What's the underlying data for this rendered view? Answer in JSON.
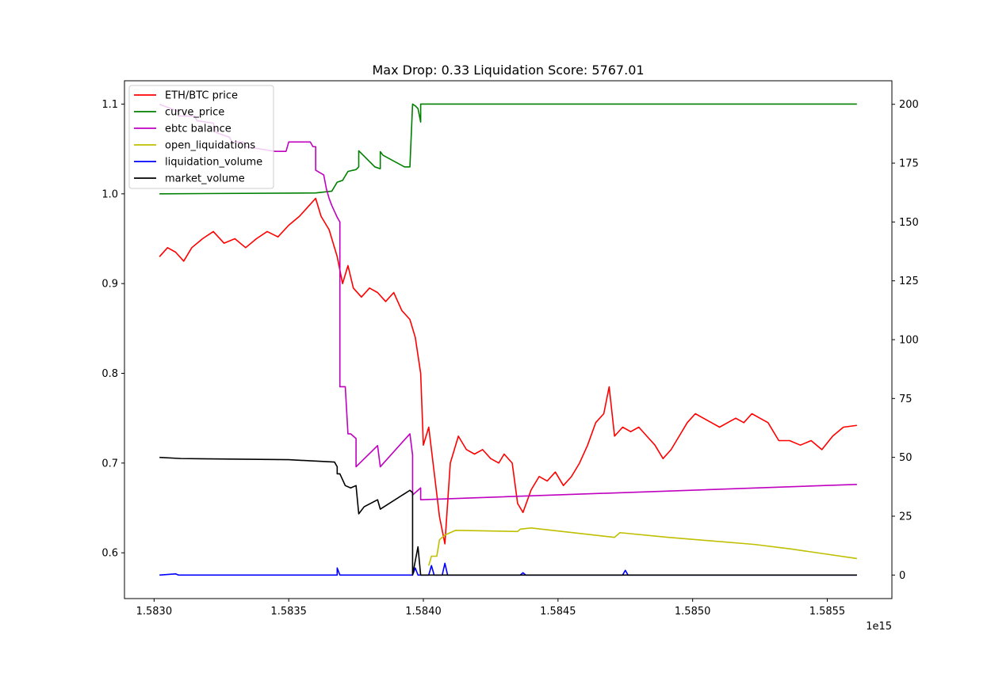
{
  "chart_data": {
    "type": "line",
    "title": "Max Drop: 0.33 Liquidation Score: 5767.01",
    "xlabel": "",
    "ylabel": "",
    "x_offset_label": "1e15",
    "xlim": [
      1.58289,
      1.58574
    ],
    "ylim_left": [
      0.549,
      1.126
    ],
    "ylim_right": [
      -10,
      210
    ],
    "x_ticks": [
      1.583,
      1.5835,
      1.584,
      1.5845,
      1.585,
      1.5855
    ],
    "x_tick_labels": [
      "1.5830",
      "1.5835",
      "1.5840",
      "1.5845",
      "1.5850",
      "1.5855"
    ],
    "y_left_ticks": [
      0.6,
      0.7,
      0.8,
      0.9,
      1.0,
      1.1
    ],
    "y_left_tick_labels": [
      "0.6",
      "0.7",
      "0.8",
      "0.9",
      "1.0",
      "1.1"
    ],
    "y_right_ticks": [
      0,
      25,
      50,
      75,
      100,
      125,
      150,
      175,
      200
    ],
    "y_right_tick_labels": [
      "0",
      "25",
      "50",
      "75",
      "100",
      "125",
      "150",
      "175",
      "200"
    ],
    "grid": false,
    "legend_position": "top-left",
    "series": [
      {
        "name": "ETH/BTC price",
        "color": "#ff0000",
        "axis": "left",
        "points": [
          [
            1.58302,
            0.93
          ],
          [
            1.58305,
            0.94
          ],
          [
            1.58308,
            0.935
          ],
          [
            1.58311,
            0.925
          ],
          [
            1.58314,
            0.94
          ],
          [
            1.58318,
            0.95
          ],
          [
            1.58322,
            0.958
          ],
          [
            1.58326,
            0.945
          ],
          [
            1.5833,
            0.95
          ],
          [
            1.58334,
            0.94
          ],
          [
            1.58338,
            0.95
          ],
          [
            1.58342,
            0.958
          ],
          [
            1.58346,
            0.952
          ],
          [
            1.5835,
            0.965
          ],
          [
            1.58354,
            0.975
          ],
          [
            1.58357,
            0.985
          ],
          [
            1.5836,
            0.995
          ],
          [
            1.58362,
            0.975
          ],
          [
            1.58365,
            0.96
          ],
          [
            1.58368,
            0.93
          ],
          [
            1.5837,
            0.9
          ],
          [
            1.58372,
            0.92
          ],
          [
            1.58374,
            0.895
          ],
          [
            1.58377,
            0.885
          ],
          [
            1.5838,
            0.895
          ],
          [
            1.58383,
            0.89
          ],
          [
            1.58386,
            0.88
          ],
          [
            1.58389,
            0.89
          ],
          [
            1.58392,
            0.87
          ],
          [
            1.58395,
            0.86
          ],
          [
            1.58397,
            0.84
          ],
          [
            1.58399,
            0.8
          ],
          [
            1.584,
            0.72
          ],
          [
            1.58402,
            0.74
          ],
          [
            1.58404,
            0.69
          ],
          [
            1.58406,
            0.64
          ],
          [
            1.58408,
            0.61
          ],
          [
            1.5841,
            0.7
          ],
          [
            1.58413,
            0.73
          ],
          [
            1.58416,
            0.715
          ],
          [
            1.58419,
            0.71
          ],
          [
            1.58422,
            0.715
          ],
          [
            1.58425,
            0.705
          ],
          [
            1.58428,
            0.7
          ],
          [
            1.5843,
            0.71
          ],
          [
            1.58433,
            0.7
          ],
          [
            1.58435,
            0.655
          ],
          [
            1.58437,
            0.645
          ],
          [
            1.5844,
            0.67
          ],
          [
            1.58443,
            0.685
          ],
          [
            1.58446,
            0.68
          ],
          [
            1.58449,
            0.69
          ],
          [
            1.58452,
            0.675
          ],
          [
            1.58455,
            0.685
          ],
          [
            1.58458,
            0.7
          ],
          [
            1.58461,
            0.72
          ],
          [
            1.58464,
            0.745
          ],
          [
            1.58467,
            0.755
          ],
          [
            1.58469,
            0.785
          ],
          [
            1.58471,
            0.73
          ],
          [
            1.58474,
            0.74
          ],
          [
            1.58477,
            0.735
          ],
          [
            1.5848,
            0.74
          ],
          [
            1.58483,
            0.73
          ],
          [
            1.58486,
            0.72
          ],
          [
            1.58489,
            0.705
          ],
          [
            1.58492,
            0.715
          ],
          [
            1.58495,
            0.73
          ],
          [
            1.58498,
            0.745
          ],
          [
            1.58501,
            0.755
          ],
          [
            1.58504,
            0.75
          ],
          [
            1.58507,
            0.745
          ],
          [
            1.5851,
            0.74
          ],
          [
            1.58513,
            0.745
          ],
          [
            1.58516,
            0.75
          ],
          [
            1.58519,
            0.745
          ],
          [
            1.58522,
            0.755
          ],
          [
            1.58525,
            0.75
          ],
          [
            1.58528,
            0.745
          ],
          [
            1.58532,
            0.725
          ],
          [
            1.58536,
            0.725
          ],
          [
            1.5854,
            0.72
          ],
          [
            1.58544,
            0.725
          ],
          [
            1.58548,
            0.715
          ],
          [
            1.58552,
            0.73
          ],
          [
            1.58556,
            0.74
          ],
          [
            1.58561,
            0.742
          ]
        ]
      },
      {
        "name": "curve_price",
        "color": "#008000",
        "axis": "left",
        "points": [
          [
            1.58302,
            1.0
          ],
          [
            1.5836,
            1.001
          ],
          [
            1.58366,
            1.003
          ],
          [
            1.58368,
            1.013
          ],
          [
            1.5837,
            1.015
          ],
          [
            1.58372,
            1.025
          ],
          [
            1.58375,
            1.027
          ],
          [
            1.58376,
            1.03
          ],
          [
            1.58376,
            1.048
          ],
          [
            1.58377,
            1.045
          ],
          [
            1.58382,
            1.03
          ],
          [
            1.58384,
            1.028
          ],
          [
            1.58384,
            1.047
          ],
          [
            1.58385,
            1.043
          ],
          [
            1.58393,
            1.03
          ],
          [
            1.58395,
            1.03
          ],
          [
            1.58396,
            1.1
          ],
          [
            1.58397,
            1.098
          ],
          [
            1.58398,
            1.095
          ],
          [
            1.58399,
            1.08
          ],
          [
            1.58399,
            1.1
          ],
          [
            1.58561,
            1.1
          ]
        ]
      },
      {
        "name": "ebtc balance",
        "color": "#bf00bf",
        "axis": "right",
        "points": [
          [
            1.58302,
            200
          ],
          [
            1.58309,
            197
          ],
          [
            1.58309,
            195
          ],
          [
            1.58315,
            195
          ],
          [
            1.58316,
            193
          ],
          [
            1.58322,
            192
          ],
          [
            1.58323,
            188
          ],
          [
            1.58328,
            186
          ],
          [
            1.58329,
            184
          ],
          [
            1.58333,
            184
          ],
          [
            1.58334,
            182
          ],
          [
            1.58345,
            180
          ],
          [
            1.58349,
            180
          ],
          [
            1.5835,
            184
          ],
          [
            1.58358,
            184
          ],
          [
            1.58359,
            182
          ],
          [
            1.5836,
            182
          ],
          [
            1.5836,
            172
          ],
          [
            1.58363,
            170
          ],
          [
            1.58364,
            164
          ],
          [
            1.58365,
            160
          ],
          [
            1.58366,
            157
          ],
          [
            1.58368,
            152
          ],
          [
            1.58369,
            150
          ],
          [
            1.58369,
            80
          ],
          [
            1.58371,
            80
          ],
          [
            1.58372,
            60
          ],
          [
            1.58373,
            60
          ],
          [
            1.58374,
            59
          ],
          [
            1.58375,
            58
          ],
          [
            1.58375,
            46
          ],
          [
            1.58383,
            55
          ],
          [
            1.58384,
            46
          ],
          [
            1.58395,
            60
          ],
          [
            1.58396,
            51
          ],
          [
            1.58396,
            34
          ],
          [
            1.58399,
            37
          ],
          [
            1.58399,
            32
          ],
          [
            1.58561,
            38.5
          ]
        ]
      },
      {
        "name": "open_liquidations",
        "color": "#bfbf00",
        "axis": "right",
        "points": [
          [
            1.58402,
            4
          ],
          [
            1.58403,
            8
          ],
          [
            1.58405,
            8
          ],
          [
            1.58406,
            15
          ],
          [
            1.58408,
            17
          ],
          [
            1.58412,
            19
          ],
          [
            1.58435,
            18.5
          ],
          [
            1.58436,
            19.5
          ],
          [
            1.5844,
            20
          ],
          [
            1.58471,
            16
          ],
          [
            1.58473,
            18
          ],
          [
            1.58491,
            16
          ],
          [
            1.58523,
            13
          ],
          [
            1.58537,
            11
          ],
          [
            1.58561,
            7
          ]
        ]
      },
      {
        "name": "liquidation_volume",
        "color": "#0000ff",
        "axis": "right",
        "points": [
          [
            1.58302,
            0
          ],
          [
            1.58308,
            0.5
          ],
          [
            1.58309,
            0
          ],
          [
            1.58368,
            0
          ],
          [
            1.58368,
            3
          ],
          [
            1.58369,
            0
          ],
          [
            1.58396,
            0
          ],
          [
            1.58397,
            3
          ],
          [
            1.58398,
            0
          ],
          [
            1.58402,
            0
          ],
          [
            1.58403,
            4
          ],
          [
            1.58404,
            0
          ],
          [
            1.58407,
            0
          ],
          [
            1.58408,
            5
          ],
          [
            1.58409,
            0
          ],
          [
            1.58436,
            0
          ],
          [
            1.58437,
            1
          ],
          [
            1.58438,
            0
          ],
          [
            1.58474,
            0
          ],
          [
            1.58475,
            2
          ],
          [
            1.58476,
            0
          ],
          [
            1.58561,
            0
          ]
        ]
      },
      {
        "name": "market_volume",
        "color": "#000000",
        "axis": "right",
        "points": [
          [
            1.58302,
            50
          ],
          [
            1.5831,
            49.5
          ],
          [
            1.5835,
            49
          ],
          [
            1.58367,
            48
          ],
          [
            1.58368,
            46
          ],
          [
            1.58368,
            43
          ],
          [
            1.58369,
            43
          ],
          [
            1.58371,
            38
          ],
          [
            1.58373,
            37
          ],
          [
            1.58375,
            38
          ],
          [
            1.58376,
            26
          ],
          [
            1.58378,
            29
          ],
          [
            1.58383,
            32
          ],
          [
            1.58384,
            28
          ],
          [
            1.58395,
            36
          ],
          [
            1.58396,
            35
          ],
          [
            1.58396,
            0
          ],
          [
            1.58398,
            12
          ],
          [
            1.58399,
            0
          ],
          [
            1.58561,
            0
          ]
        ]
      }
    ]
  }
}
